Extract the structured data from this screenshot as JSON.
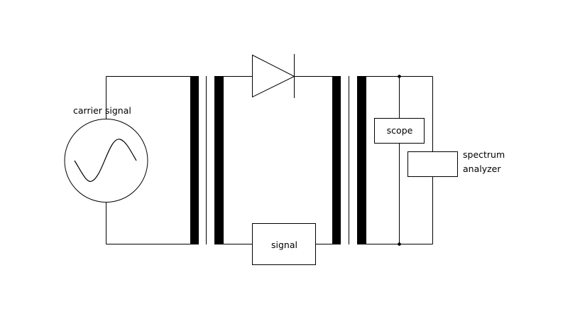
{
  "labels": {
    "carrier_signal": "carrier signal",
    "scope": "scope",
    "spectrum_analyzer_line1": "spectrum",
    "spectrum_analyzer_line2": "analyzer",
    "signal": "signal"
  },
  "colors": {
    "stroke": "#000000",
    "background": "#ffffff"
  }
}
